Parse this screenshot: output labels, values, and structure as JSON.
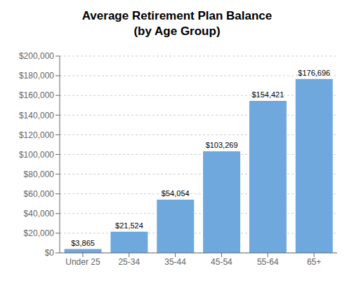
{
  "chart_data": {
    "type": "bar",
    "title": "Average Retirement Plan Balance\n(by Age Group)",
    "categories": [
      "Under 25",
      "25-34",
      "35-44",
      "45-54",
      "55-64",
      "65+"
    ],
    "values": [
      3865,
      21524,
      54054,
      103269,
      154421,
      176696
    ],
    "value_labels": [
      "$3,865",
      "$21,524",
      "$54,054",
      "$103,269",
      "$154,421",
      "$176,696"
    ],
    "data_labels": true,
    "color": "#6fa8dc",
    "ylim": [
      0,
      200000
    ],
    "yticks": [
      {
        "value": 0,
        "label": "$0"
      },
      {
        "value": 20000,
        "label": "$20,000"
      },
      {
        "value": 40000,
        "label": "$40,000"
      },
      {
        "value": 60000,
        "label": "$60,000"
      },
      {
        "value": 80000,
        "label": "$80,000"
      },
      {
        "value": 100000,
        "label": "$100,000"
      },
      {
        "value": 120000,
        "label": "$120,000"
      },
      {
        "value": 140000,
        "label": "$140,000"
      },
      {
        "value": 160000,
        "label": "$160,000"
      },
      {
        "value": 180000,
        "label": "$180,000"
      },
      {
        "value": 200000,
        "label": "$200,000"
      }
    ],
    "grid": true
  }
}
